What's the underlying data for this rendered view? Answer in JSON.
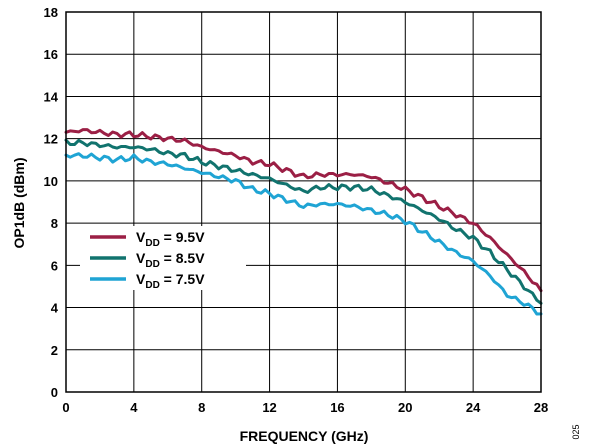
{
  "chart_data": {
    "type": "line",
    "xlabel": "FREQUENCY (GHz)",
    "ylabel": "OP1dB (dBm)",
    "xlim": [
      0,
      28
    ],
    "ylim": [
      0,
      18
    ],
    "xticks": [
      0,
      4,
      8,
      12,
      16,
      20,
      24,
      28
    ],
    "yticks": [
      0,
      2,
      4,
      6,
      8,
      10,
      12,
      14,
      16,
      18
    ],
    "grid": true,
    "legend_position": "left",
    "figure_id": "025",
    "x": [
      0,
      1,
      2,
      3,
      4,
      5,
      6,
      7,
      8,
      9,
      10,
      11,
      12,
      13,
      14,
      15,
      16,
      17,
      18,
      19,
      20,
      21,
      22,
      23,
      24,
      25,
      26,
      27,
      28
    ],
    "series": [
      {
        "name": "V_DD = 9.5V",
        "legend": {
          "main": "V",
          "sub": "DD",
          "rest": " = 9.5V"
        },
        "color": "#9b1f45",
        "values": [
          12.3,
          12.4,
          12.3,
          12.2,
          12.2,
          12.1,
          12.0,
          11.9,
          11.6,
          11.4,
          11.2,
          10.9,
          10.8,
          10.5,
          10.2,
          10.3,
          10.3,
          10.3,
          10.2,
          9.9,
          9.6,
          9.2,
          8.8,
          8.4,
          8.0,
          7.3,
          6.5,
          5.7,
          4.8
        ]
      },
      {
        "name": "V_DD = 8.5V",
        "legend": {
          "main": "V",
          "sub": "DD",
          "rest": " = 8.5V"
        },
        "color": "#11736e",
        "values": [
          11.8,
          11.8,
          11.7,
          11.6,
          11.6,
          11.5,
          11.3,
          11.2,
          10.9,
          10.7,
          10.5,
          10.3,
          10.1,
          9.8,
          9.5,
          9.7,
          9.7,
          9.7,
          9.6,
          9.3,
          9.0,
          8.6,
          8.2,
          7.7,
          7.3,
          6.6,
          5.8,
          5.0,
          4.2
        ]
      },
      {
        "name": "V_DD = 7.5V",
        "legend": {
          "main": "V",
          "sub": "DD",
          "rest": " = 7.5V"
        },
        "color": "#1fa4d4",
        "values": [
          11.2,
          11.2,
          11.1,
          11.0,
          11.1,
          10.9,
          10.8,
          10.6,
          10.4,
          10.2,
          10.0,
          9.6,
          9.4,
          9.1,
          8.8,
          8.9,
          8.9,
          8.8,
          8.6,
          8.4,
          8.1,
          7.6,
          7.1,
          6.6,
          6.2,
          5.5,
          4.6,
          4.2,
          3.7
        ]
      }
    ]
  }
}
